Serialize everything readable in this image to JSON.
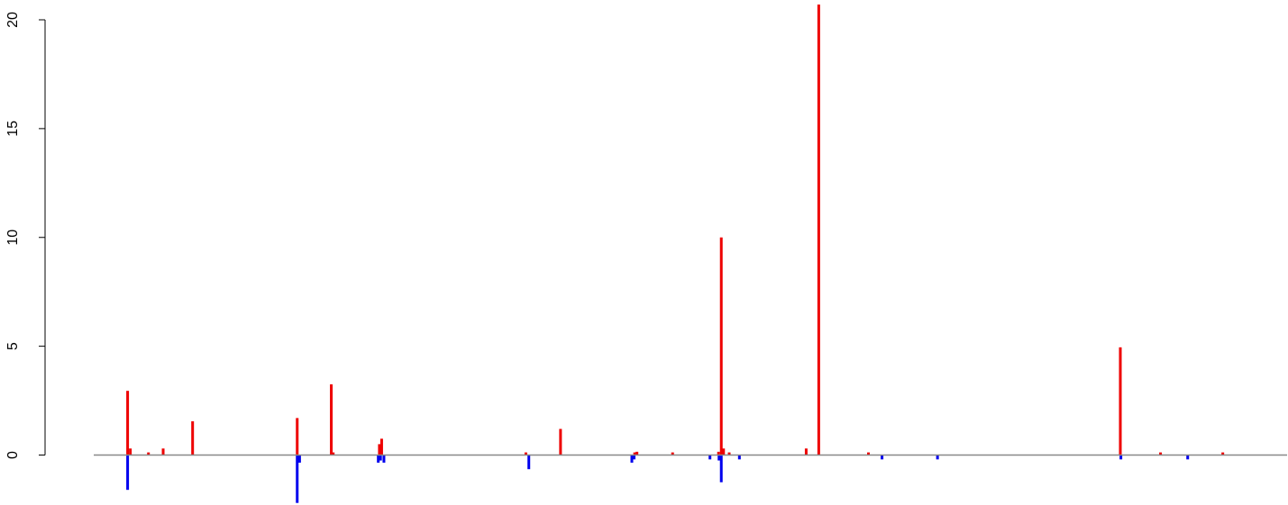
{
  "chart_data": {
    "type": "bar",
    "title": "",
    "xlabel": "",
    "ylabel": "",
    "ylim": [
      -2.3,
      20.8
    ],
    "xlim": [
      0,
      1000
    ],
    "yticks": [
      0,
      5,
      10,
      15,
      20
    ],
    "ytick_labels": [
      "0",
      "5",
      "10",
      "15",
      "20"
    ],
    "baseline": 0,
    "grid": false,
    "legend": "none",
    "colors": {
      "positive": "#ee0000",
      "negative": "#0000ee",
      "baseline": "#888888",
      "axis": "#000000"
    },
    "series": [
      {
        "color": "#ee0000",
        "points": [
          [
            15.6,
            2.95
          ],
          [
            18.0,
            0.3
          ],
          [
            34.0,
            0.12
          ],
          [
            47.0,
            0.3
          ],
          [
            73.0,
            1.55
          ],
          [
            165.4,
            1.7
          ],
          [
            195.5,
            3.25
          ],
          [
            197.2,
            0.12
          ],
          [
            238.0,
            0.5
          ],
          [
            240.0,
            0.75
          ],
          [
            367.4,
            0.12
          ],
          [
            398.0,
            1.2
          ],
          [
            463.5,
            0.12
          ],
          [
            465.5,
            0.15
          ],
          [
            497.0,
            0.12
          ],
          [
            537.6,
            0.15
          ],
          [
            540.0,
            10.0
          ],
          [
            542.0,
            0.3
          ],
          [
            547.0,
            0.12
          ],
          [
            615.0,
            0.3
          ],
          [
            626.1,
            20.7
          ],
          [
            670.0,
            0.12
          ],
          [
            892.5,
            4.95
          ],
          [
            928.0,
            0.12
          ],
          [
            983.0,
            0.12
          ]
        ]
      },
      {
        "color": "#0000ee",
        "points": [
          [
            15.6,
            -1.6
          ],
          [
            165.4,
            -2.2
          ],
          [
            167.5,
            -0.35
          ],
          [
            237.0,
            -0.35
          ],
          [
            239.0,
            -0.25
          ],
          [
            242.0,
            -0.35
          ],
          [
            370.0,
            -0.65
          ],
          [
            461.0,
            -0.35
          ],
          [
            463.0,
            -0.2
          ],
          [
            530.0,
            -0.2
          ],
          [
            538.0,
            -0.25
          ],
          [
            540.0,
            -1.25
          ],
          [
            556.0,
            -0.2
          ],
          [
            682.0,
            -0.2
          ],
          [
            731.0,
            -0.2
          ],
          [
            893.0,
            -0.2
          ],
          [
            952.0,
            -0.2
          ]
        ]
      }
    ]
  }
}
